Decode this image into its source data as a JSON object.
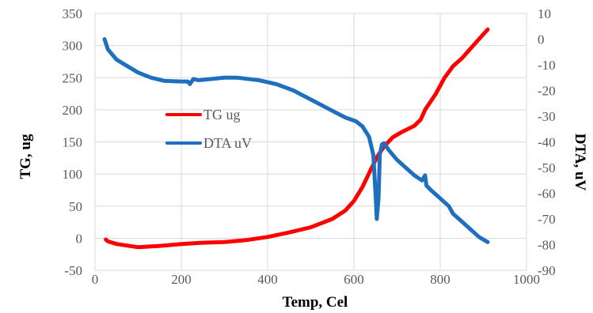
{
  "chart_data": {
    "type": "line",
    "xlabel": "Temp, Cel",
    "ylabel": "TG, ug",
    "y2label": "DTA, uV",
    "xlim": [
      0,
      1000
    ],
    "ylim": [
      -50,
      350
    ],
    "y2lim": [
      -90,
      10
    ],
    "x_ticks": [
      "0",
      "200",
      "400",
      "600",
      "800",
      "1000"
    ],
    "y_ticks": [
      "-50",
      "0",
      "50",
      "100",
      "150",
      "200",
      "250",
      "300",
      "350"
    ],
    "y2_ticks": [
      "-90",
      "-80",
      "-70",
      "-60",
      "-50",
      "-40",
      "-30",
      "-20",
      "-10",
      "0",
      "10"
    ],
    "grid": true,
    "legend_position": "center-left",
    "series": [
      {
        "name": "TG ug",
        "axis": "left",
        "color": "#ff0000",
        "points": [
          [
            25,
            -2
          ],
          [
            30,
            -5
          ],
          [
            50,
            -9
          ],
          [
            100,
            -14
          ],
          [
            150,
            -12
          ],
          [
            200,
            -9
          ],
          [
            250,
            -7
          ],
          [
            300,
            -6
          ],
          [
            350,
            -3
          ],
          [
            400,
            2
          ],
          [
            450,
            9
          ],
          [
            500,
            17
          ],
          [
            550,
            30
          ],
          [
            580,
            43
          ],
          [
            600,
            58
          ],
          [
            620,
            80
          ],
          [
            640,
            108
          ],
          [
            655,
            128
          ],
          [
            670,
            143
          ],
          [
            690,
            157
          ],
          [
            710,
            165
          ],
          [
            740,
            175
          ],
          [
            755,
            185
          ],
          [
            765,
            200
          ],
          [
            790,
            225
          ],
          [
            810,
            250
          ],
          [
            830,
            268
          ],
          [
            850,
            280
          ],
          [
            870,
            295
          ],
          [
            890,
            310
          ],
          [
            910,
            325
          ]
        ]
      },
      {
        "name": "DTA uV",
        "axis": "right",
        "color": "#1f6fbf",
        "points": [
          [
            22,
            0
          ],
          [
            30,
            -4
          ],
          [
            50,
            -8
          ],
          [
            80,
            -11
          ],
          [
            100,
            -13
          ],
          [
            130,
            -15
          ],
          [
            160,
            -16.2
          ],
          [
            200,
            -16.5
          ],
          [
            215,
            -16.5
          ],
          [
            220,
            -17.5
          ],
          [
            228,
            -15.5
          ],
          [
            240,
            -16
          ],
          [
            270,
            -15.5
          ],
          [
            300,
            -15
          ],
          [
            330,
            -15
          ],
          [
            380,
            -16
          ],
          [
            420,
            -17.5
          ],
          [
            460,
            -20
          ],
          [
            500,
            -23.5
          ],
          [
            540,
            -27
          ],
          [
            580,
            -30.5
          ],
          [
            605,
            -32
          ],
          [
            620,
            -34
          ],
          [
            635,
            -38
          ],
          [
            645,
            -45
          ],
          [
            650,
            -60
          ],
          [
            653,
            -70
          ],
          [
            657,
            -62
          ],
          [
            660,
            -45
          ],
          [
            665,
            -41
          ],
          [
            670,
            -40.5
          ],
          [
            680,
            -43
          ],
          [
            700,
            -47
          ],
          [
            720,
            -50
          ],
          [
            740,
            -53
          ],
          [
            758,
            -55
          ],
          [
            765,
            -53
          ],
          [
            768,
            -57
          ],
          [
            780,
            -59
          ],
          [
            800,
            -62
          ],
          [
            820,
            -65
          ],
          [
            830,
            -68
          ],
          [
            850,
            -71
          ],
          [
            870,
            -74
          ],
          [
            890,
            -77
          ],
          [
            910,
            -79
          ]
        ]
      }
    ]
  }
}
